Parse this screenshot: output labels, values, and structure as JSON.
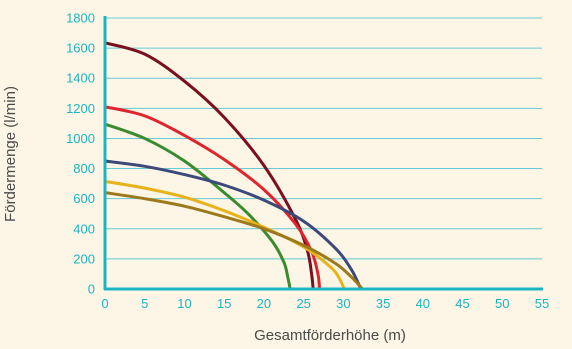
{
  "chart_data": {
    "type": "line",
    "title": "",
    "xlabel": "Gesamtförderhöhe (m)",
    "ylabel": "Fördermenge (l/min)",
    "xlim": [
      0,
      55
    ],
    "ylim": [
      0,
      1800
    ],
    "xticks": [
      "0",
      "5",
      "10",
      "15",
      "20",
      "25",
      "30",
      "35",
      "40",
      "45",
      "50",
      "55"
    ],
    "yticks": [
      "0",
      "200",
      "400",
      "600",
      "800",
      "1000",
      "1200",
      "1400",
      "1600",
      "1800"
    ],
    "grid": "horizontal",
    "legend": "none",
    "colors": {
      "background": "#fdf6e7",
      "axis": "#1ab5c2",
      "grid": "#6cc9d3",
      "tick_text": "#1ab5c2",
      "title_text": "#4a4a4a"
    },
    "series": [
      {
        "color": "#7a0f1e",
        "x": [
          0,
          5,
          10,
          15,
          20,
          24,
          25.5,
          26,
          26.2
        ],
        "y": [
          1635,
          1560,
          1380,
          1140,
          820,
          460,
          250,
          100,
          0
        ]
      },
      {
        "color": "#e0242c",
        "x": [
          0,
          5,
          10,
          15,
          20,
          24,
          26,
          26.8,
          27
        ],
        "y": [
          1210,
          1150,
          1020,
          860,
          660,
          430,
          250,
          100,
          0
        ]
      },
      {
        "color": "#3a8a2f",
        "x": [
          0,
          5,
          10,
          15,
          18,
          21,
          22.5,
          23,
          23.3
        ],
        "y": [
          1095,
          1000,
          850,
          640,
          500,
          320,
          180,
          80,
          0
        ]
      },
      {
        "color": "#3b4a7a",
        "x": [
          0,
          5,
          10,
          15,
          20,
          25,
          29,
          31,
          32.2
        ],
        "y": [
          850,
          815,
          760,
          690,
          590,
          450,
          270,
          130,
          0
        ]
      },
      {
        "color": "#e8b21a",
        "x": [
          0,
          5,
          10,
          15,
          20,
          25,
          28.5,
          29.6,
          30.1
        ],
        "y": [
          715,
          670,
          610,
          520,
          410,
          280,
          140,
          60,
          0
        ]
      },
      {
        "color": "#9c7a1c",
        "x": [
          0,
          5,
          10,
          15,
          20,
          25,
          29,
          31,
          32.4
        ],
        "y": [
          640,
          600,
          550,
          480,
          400,
          290,
          170,
          80,
          0
        ]
      }
    ]
  }
}
